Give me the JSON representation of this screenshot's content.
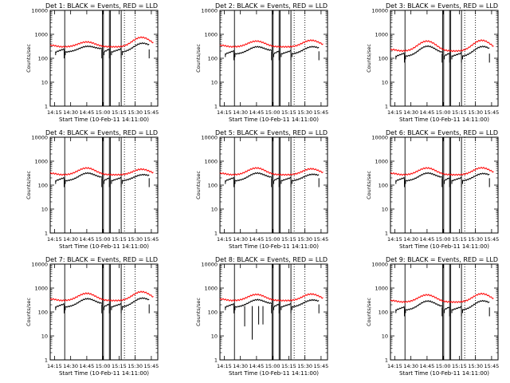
{
  "chart_data": {
    "type": "line",
    "scale_y": "log",
    "ylim": [
      1,
      10000
    ],
    "xlim": [
      "14:11:00",
      "15:51:00"
    ],
    "x_tick_labels": [
      "14:15",
      "14:30",
      "14:45",
      "15:00",
      "15:15",
      "15:30",
      "15:45"
    ],
    "y_tick_labels": [
      "1",
      "10",
      "100",
      "1000",
      "10000"
    ],
    "ylabel": "Counts/sec",
    "xlabel": "Start Time (10-Feb-11 14:11:00)",
    "series_names": [
      "BLACK = Events",
      "RED = LLD"
    ],
    "colors": {
      "events": "#000000",
      "lld": "#ff0000"
    },
    "grid": false,
    "panels": [
      {
        "title": "Det 1: BLACK = Events, RED = LLD",
        "lld_base": 300,
        "lld_peak": 480,
        "lld_peak_late": 750,
        "events_base": 180,
        "dips": []
      },
      {
        "title": "Det 2: BLACK = Events, RED = LLD",
        "lld_base": 300,
        "lld_peak": 520,
        "lld_peak_late": 560,
        "events_base": 150,
        "dips": []
      },
      {
        "title": "Det 3: BLACK = Events, RED = LLD",
        "lld_base": 200,
        "lld_peak": 520,
        "lld_peak_late": 560,
        "events_base": 120,
        "dips": []
      },
      {
        "title": "Det 4: BLACK = Events, RED = LLD",
        "lld_base": 270,
        "lld_peak": 520,
        "lld_peak_late": 460,
        "events_base": 150,
        "dips": []
      },
      {
        "title": "Det 5: BLACK = Events, RED = LLD",
        "lld_base": 270,
        "lld_peak": 520,
        "lld_peak_late": 480,
        "events_base": 150,
        "dips": []
      },
      {
        "title": "Det 6: BLACK = Events, RED = LLD",
        "lld_base": 270,
        "lld_peak": 520,
        "lld_peak_late": 530,
        "events_base": 150,
        "dips": []
      },
      {
        "title": "Det 7: BLACK = Events, RED = LLD",
        "lld_base": 300,
        "lld_peak": 600,
        "lld_peak_late": 700,
        "events_base": 160,
        "dips": []
      },
      {
        "title": "Det 8: BLACK = Events, RED = LLD",
        "lld_base": 300,
        "lld_peak": 540,
        "lld_peak_late": 560,
        "events_base": 160,
        "dips": [
          [
            23,
            25
          ],
          [
            30,
            7
          ],
          [
            36,
            30
          ],
          [
            40,
            30
          ]
        ]
      },
      {
        "title": "Det 9: BLACK = Events, RED = LLD",
        "lld_base": 260,
        "lld_peak": 520,
        "lld_peak_late": 580,
        "events_base": 120,
        "dips": []
      }
    ],
    "vertical_markers_min": [
      13.5,
      48.5,
      49.5,
      55,
      56,
      66
    ],
    "dotted_markers_min": [
      69,
      79
    ]
  }
}
